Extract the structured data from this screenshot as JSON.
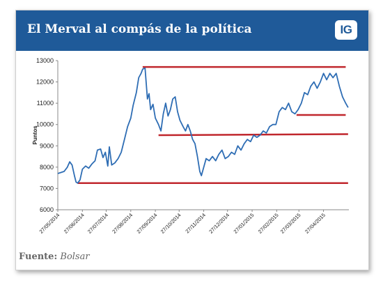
{
  "header": {
    "title": "El Merval al compás de la política",
    "logo_text": "IG"
  },
  "source": {
    "label": "Fuente:",
    "value": "Bolsar"
  },
  "colors": {
    "header": "#1f5a99",
    "line": "#2e6db4",
    "reference": "#c0272d"
  },
  "chart_data": {
    "type": "line",
    "title": "El Merval al compás de la política",
    "xlabel": "",
    "ylabel": "Puntos",
    "ylim": [
      6000,
      13000
    ],
    "yticks": [
      6000,
      7000,
      8000,
      9000,
      10000,
      11000,
      12000,
      13000
    ],
    "x_tick_labels": [
      "27/05/2014",
      "27/06/2014",
      "27/07/2014",
      "27/08/2014",
      "27/09/2014",
      "27/10/2014",
      "27/11/2014",
      "27/12/2014",
      "27/01/2015",
      "27/02/2015",
      "27/03/2015",
      "27/04/2015"
    ],
    "xlim": [
      "2014-05-27",
      "2015-05-29"
    ],
    "grid": false,
    "series": [
      {
        "values": [
          [
            "2014-05-27",
            7700
          ],
          [
            "2014-05-31",
            7750
          ],
          [
            "2014-06-04",
            7800
          ],
          [
            "2014-06-08",
            8000
          ],
          [
            "2014-06-11",
            8250
          ],
          [
            "2014-06-14",
            8100
          ],
          [
            "2014-06-17",
            7600
          ],
          [
            "2014-06-19",
            7300
          ],
          [
            "2014-06-21",
            7250
          ],
          [
            "2014-06-24",
            7400
          ],
          [
            "2014-06-27",
            7900
          ],
          [
            "2014-07-01",
            8050
          ],
          [
            "2014-07-05",
            7950
          ],
          [
            "2014-07-09",
            8150
          ],
          [
            "2014-07-13",
            8300
          ],
          [
            "2014-07-16",
            8800
          ],
          [
            "2014-07-20",
            8850
          ],
          [
            "2014-07-23",
            8450
          ],
          [
            "2014-07-26",
            8700
          ],
          [
            "2014-07-29",
            8050
          ],
          [
            "2014-07-31",
            8950
          ],
          [
            "2014-08-03",
            8100
          ],
          [
            "2014-08-07",
            8200
          ],
          [
            "2014-08-11",
            8400
          ],
          [
            "2014-08-15",
            8700
          ],
          [
            "2014-08-19",
            9300
          ],
          [
            "2014-08-23",
            9900
          ],
          [
            "2014-08-27",
            10300
          ],
          [
            "2014-08-30",
            10900
          ],
          [
            "2014-09-03",
            11500
          ],
          [
            "2014-09-06",
            12200
          ],
          [
            "2014-09-09",
            12400
          ],
          [
            "2014-09-11",
            12600
          ],
          [
            "2014-09-14",
            12650
          ],
          [
            "2014-09-17",
            11200
          ],
          [
            "2014-09-19",
            11450
          ],
          [
            "2014-09-21",
            10700
          ],
          [
            "2014-09-24",
            10950
          ],
          [
            "2014-09-27",
            10300
          ],
          [
            "2014-10-01",
            10000
          ],
          [
            "2014-10-04",
            9700
          ],
          [
            "2014-10-07",
            10500
          ],
          [
            "2014-10-10",
            11000
          ],
          [
            "2014-10-13",
            10400
          ],
          [
            "2014-10-16",
            10700
          ],
          [
            "2014-10-19",
            11200
          ],
          [
            "2014-10-22",
            11300
          ],
          [
            "2014-10-25",
            10600
          ],
          [
            "2014-10-28",
            10200
          ],
          [
            "2014-11-01",
            9900
          ],
          [
            "2014-11-04",
            9700
          ],
          [
            "2014-11-07",
            10000
          ],
          [
            "2014-11-10",
            9700
          ],
          [
            "2014-11-13",
            9300
          ],
          [
            "2014-11-16",
            9100
          ],
          [
            "2014-11-19",
            8500
          ],
          [
            "2014-11-22",
            7800
          ],
          [
            "2014-11-24",
            7600
          ],
          [
            "2014-11-27",
            8000
          ],
          [
            "2014-11-30",
            8400
          ],
          [
            "2014-12-04",
            8300
          ],
          [
            "2014-12-08",
            8500
          ],
          [
            "2014-12-12",
            8300
          ],
          [
            "2014-12-16",
            8600
          ],
          [
            "2014-12-20",
            8800
          ],
          [
            "2014-12-24",
            8400
          ],
          [
            "2014-12-28",
            8500
          ],
          [
            "2015-01-01",
            8700
          ],
          [
            "2015-01-05",
            8600
          ],
          [
            "2015-01-09",
            9000
          ],
          [
            "2015-01-13",
            8800
          ],
          [
            "2015-01-17",
            9100
          ],
          [
            "2015-01-21",
            9300
          ],
          [
            "2015-01-25",
            9200
          ],
          [
            "2015-01-29",
            9500
          ],
          [
            "2015-02-02",
            9400
          ],
          [
            "2015-02-06",
            9500
          ],
          [
            "2015-02-10",
            9700
          ],
          [
            "2015-02-14",
            9600
          ],
          [
            "2015-02-18",
            9900
          ],
          [
            "2015-02-22",
            10000
          ],
          [
            "2015-02-26",
            10000
          ],
          [
            "2015-03-02",
            10600
          ],
          [
            "2015-03-06",
            10800
          ],
          [
            "2015-03-10",
            10700
          ],
          [
            "2015-03-14",
            11000
          ],
          [
            "2015-03-18",
            10600
          ],
          [
            "2015-03-22",
            10500
          ],
          [
            "2015-03-26",
            10700
          ],
          [
            "2015-03-30",
            11000
          ],
          [
            "2015-04-03",
            11500
          ],
          [
            "2015-04-07",
            11400
          ],
          [
            "2015-04-11",
            11800
          ],
          [
            "2015-04-15",
            12000
          ],
          [
            "2015-04-19",
            11700
          ],
          [
            "2015-04-23",
            12000
          ],
          [
            "2015-04-27",
            12400
          ],
          [
            "2015-05-01",
            12100
          ],
          [
            "2015-05-05",
            12400
          ],
          [
            "2015-05-09",
            12200
          ],
          [
            "2015-05-13",
            12400
          ],
          [
            "2015-05-17",
            11800
          ],
          [
            "2015-05-21",
            11300
          ],
          [
            "2015-05-25",
            11000
          ],
          [
            "2015-05-28",
            10800
          ]
        ]
      }
    ],
    "reference_lines": [
      {
        "from": [
          "2014-09-11",
          12700
        ],
        "to": [
          "2015-05-25",
          12700
        ]
      },
      {
        "from": [
          "2014-10-01",
          9500
        ],
        "to": [
          "2015-05-28",
          9550
        ]
      },
      {
        "from": [
          "2014-06-21",
          7250
        ],
        "to": [
          "2015-05-28",
          7250
        ]
      },
      {
        "from": [
          "2015-03-24",
          10450
        ],
        "to": [
          "2015-05-25",
          10450
        ]
      }
    ]
  }
}
